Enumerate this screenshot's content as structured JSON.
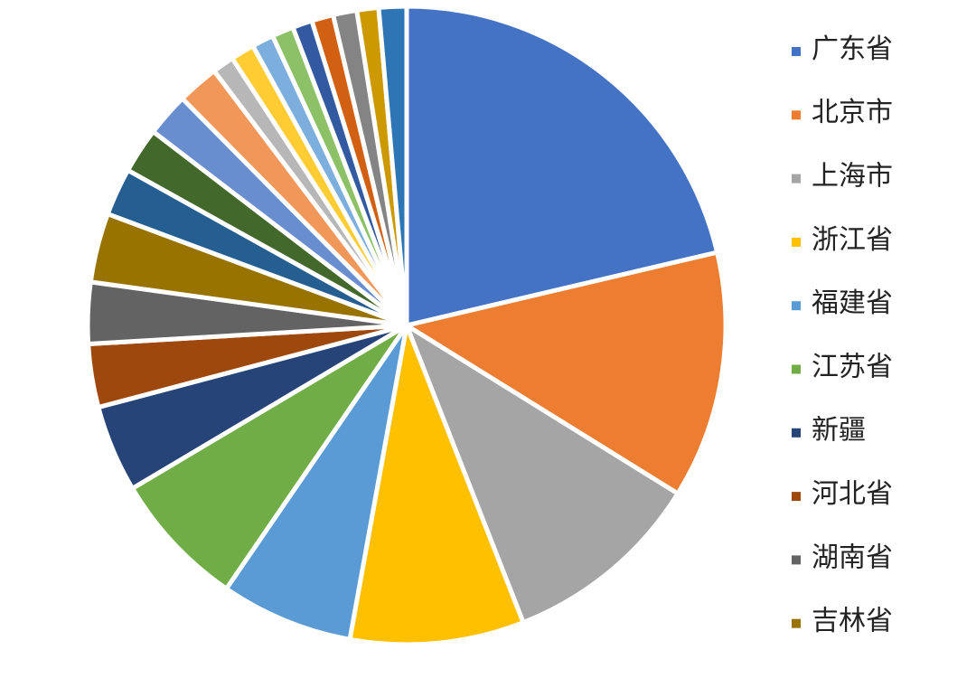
{
  "chart_data": {
    "type": "pie",
    "categories": [
      "广东省",
      "北京市",
      "上海市",
      "浙江省",
      "福建省",
      "江苏省",
      "新疆",
      "河北省",
      "湖南省",
      "吉林省",
      null,
      null,
      null,
      null,
      null,
      null,
      null,
      null,
      null,
      null,
      null,
      null,
      null
    ],
    "values": [
      21.3,
      12.5,
      10.2,
      8.8,
      6.7,
      6.9,
      4.4,
      3.2,
      3.1,
      3.5,
      2.4,
      2.3,
      2.2,
      2.1,
      1.1,
      1.2,
      1.1,
      1.1,
      1.0,
      1.1,
      1.2,
      1.1,
      1.4
    ],
    "colors": [
      "#4472C4",
      "#ED7D31",
      "#A5A5A5",
      "#FFC000",
      "#5B9BD5",
      "#70AD47",
      "#264478",
      "#9E480E",
      "#636363",
      "#997300",
      "#255E91",
      "#43682B",
      "#698ED0",
      "#F1975A",
      "#B7B7B7",
      "#FFCD33",
      "#7CAFDD",
      "#8CC168",
      "#335AA1",
      "#D26012",
      "#848484",
      "#CC9A00",
      "#2E75B6"
    ],
    "legend": "right"
  }
}
